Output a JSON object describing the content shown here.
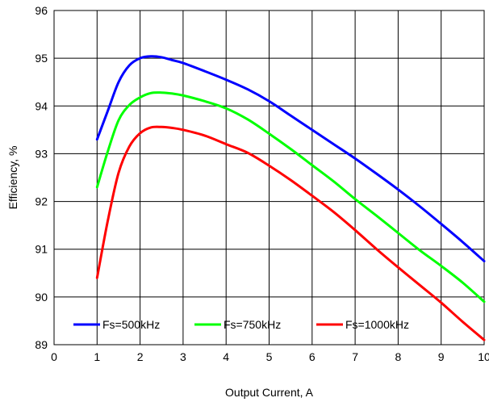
{
  "chart_data": {
    "type": "line",
    "title": "",
    "xlabel": "Output Current, A",
    "ylabel": "Efficiency, %",
    "xlim": [
      0,
      10
    ],
    "ylim": [
      89,
      96
    ],
    "xticks": [
      "0",
      "1",
      "2",
      "3",
      "4",
      "5",
      "6",
      "7",
      "8",
      "9",
      "10"
    ],
    "yticks": [
      "89",
      "90",
      "91",
      "92",
      "93",
      "94",
      "95",
      "96"
    ],
    "grid": true,
    "legend_position": "bottom-inside",
    "series": [
      {
        "name": "Fs=500kHz",
        "color": "#0000ff",
        "x": [
          1,
          1.25,
          1.5,
          1.75,
          2,
          2.25,
          2.5,
          2.75,
          3,
          3.5,
          4,
          4.5,
          5,
          5.5,
          6,
          6.5,
          7,
          7.5,
          8,
          8.5,
          9,
          9.5,
          10
        ],
        "y": [
          93.3,
          93.9,
          94.5,
          94.85,
          95.0,
          95.04,
          95.02,
          94.96,
          94.9,
          94.73,
          94.55,
          94.35,
          94.1,
          93.8,
          93.5,
          93.2,
          92.9,
          92.58,
          92.25,
          91.9,
          91.53,
          91.15,
          90.75
        ]
      },
      {
        "name": "Fs=750kHz",
        "color": "#00ff00",
        "x": [
          1,
          1.25,
          1.5,
          1.75,
          2,
          2.25,
          2.5,
          2.75,
          3,
          3.5,
          4,
          4.5,
          5,
          5.5,
          6,
          6.5,
          7,
          7.5,
          8,
          8.5,
          9,
          9.5,
          10
        ],
        "y": [
          92.3,
          93.05,
          93.7,
          94.02,
          94.18,
          94.27,
          94.28,
          94.26,
          94.22,
          94.1,
          93.95,
          93.72,
          93.42,
          93.1,
          92.76,
          92.42,
          92.05,
          91.7,
          91.34,
          90.98,
          90.65,
          90.3,
          89.9
        ]
      },
      {
        "name": "Fs=1000kHz",
        "color": "#ff0000",
        "x": [
          1,
          1.25,
          1.5,
          1.75,
          2,
          2.25,
          2.5,
          2.75,
          3,
          3.5,
          4,
          4.5,
          5,
          5.5,
          6,
          6.5,
          7,
          7.5,
          8,
          8.5,
          9,
          9.5,
          10
        ],
        "y": [
          90.4,
          91.6,
          92.6,
          93.15,
          93.43,
          93.55,
          93.56,
          93.54,
          93.5,
          93.38,
          93.2,
          93.02,
          92.75,
          92.45,
          92.12,
          91.78,
          91.4,
          91.0,
          90.62,
          90.25,
          89.88,
          89.48,
          89.1
        ]
      }
    ]
  }
}
